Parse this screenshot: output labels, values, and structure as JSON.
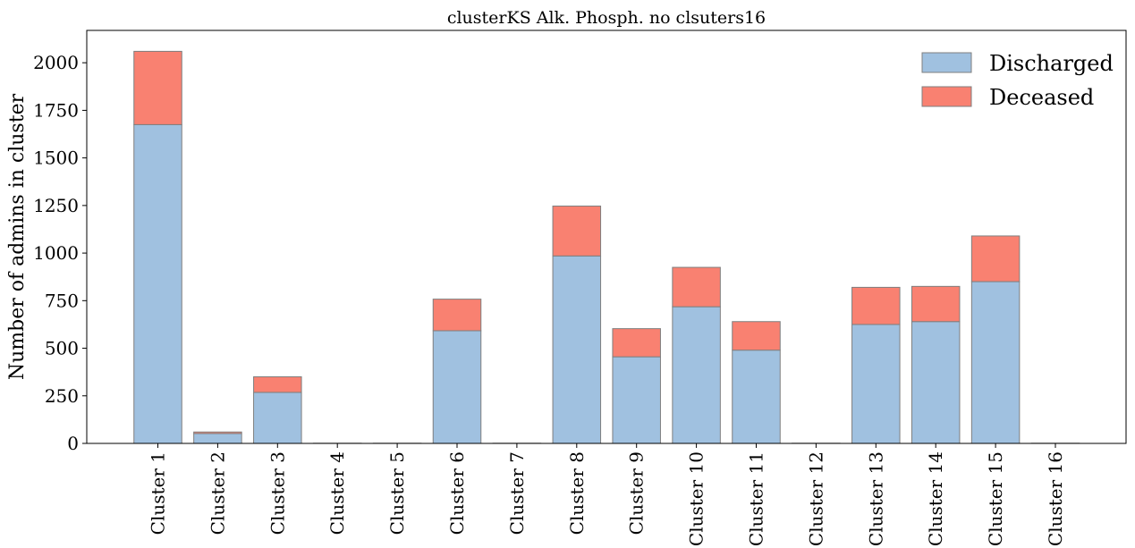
{
  "colors": {
    "discharged": "#a0c1e0",
    "deceased": "#f98171",
    "bar_edge": "#7f7f7f"
  },
  "chart_data": {
    "type": "bar",
    "stacked": true,
    "title": "clusterKS Alk. Phosph. no clsuters16",
    "xlabel": "",
    "ylabel": "Number of admins in cluster",
    "ylim": [
      0,
      2170
    ],
    "yticks": [
      0,
      250,
      500,
      750,
      1000,
      1250,
      1500,
      1750,
      2000
    ],
    "categories": [
      "Cluster 1",
      "Cluster 2",
      "Cluster 3",
      "Cluster 4",
      "Cluster 5",
      "Cluster 6",
      "Cluster 7",
      "Cluster 8",
      "Cluster 9",
      "Cluster 10",
      "Cluster 11",
      "Cluster 12",
      "Cluster 13",
      "Cluster 14",
      "Cluster 15",
      "Cluster 16"
    ],
    "series": [
      {
        "name": "Discharged",
        "values": [
          1675,
          52,
          268,
          1,
          1,
          592,
          1,
          985,
          455,
          718,
          490,
          1,
          625,
          640,
          850,
          1
        ]
      },
      {
        "name": "Deceased",
        "values": [
          385,
          8,
          82,
          0,
          0,
          166,
          0,
          262,
          148,
          207,
          150,
          0,
          195,
          185,
          240,
          0
        ]
      }
    ],
    "legend": "upper-right",
    "grid": false
  }
}
